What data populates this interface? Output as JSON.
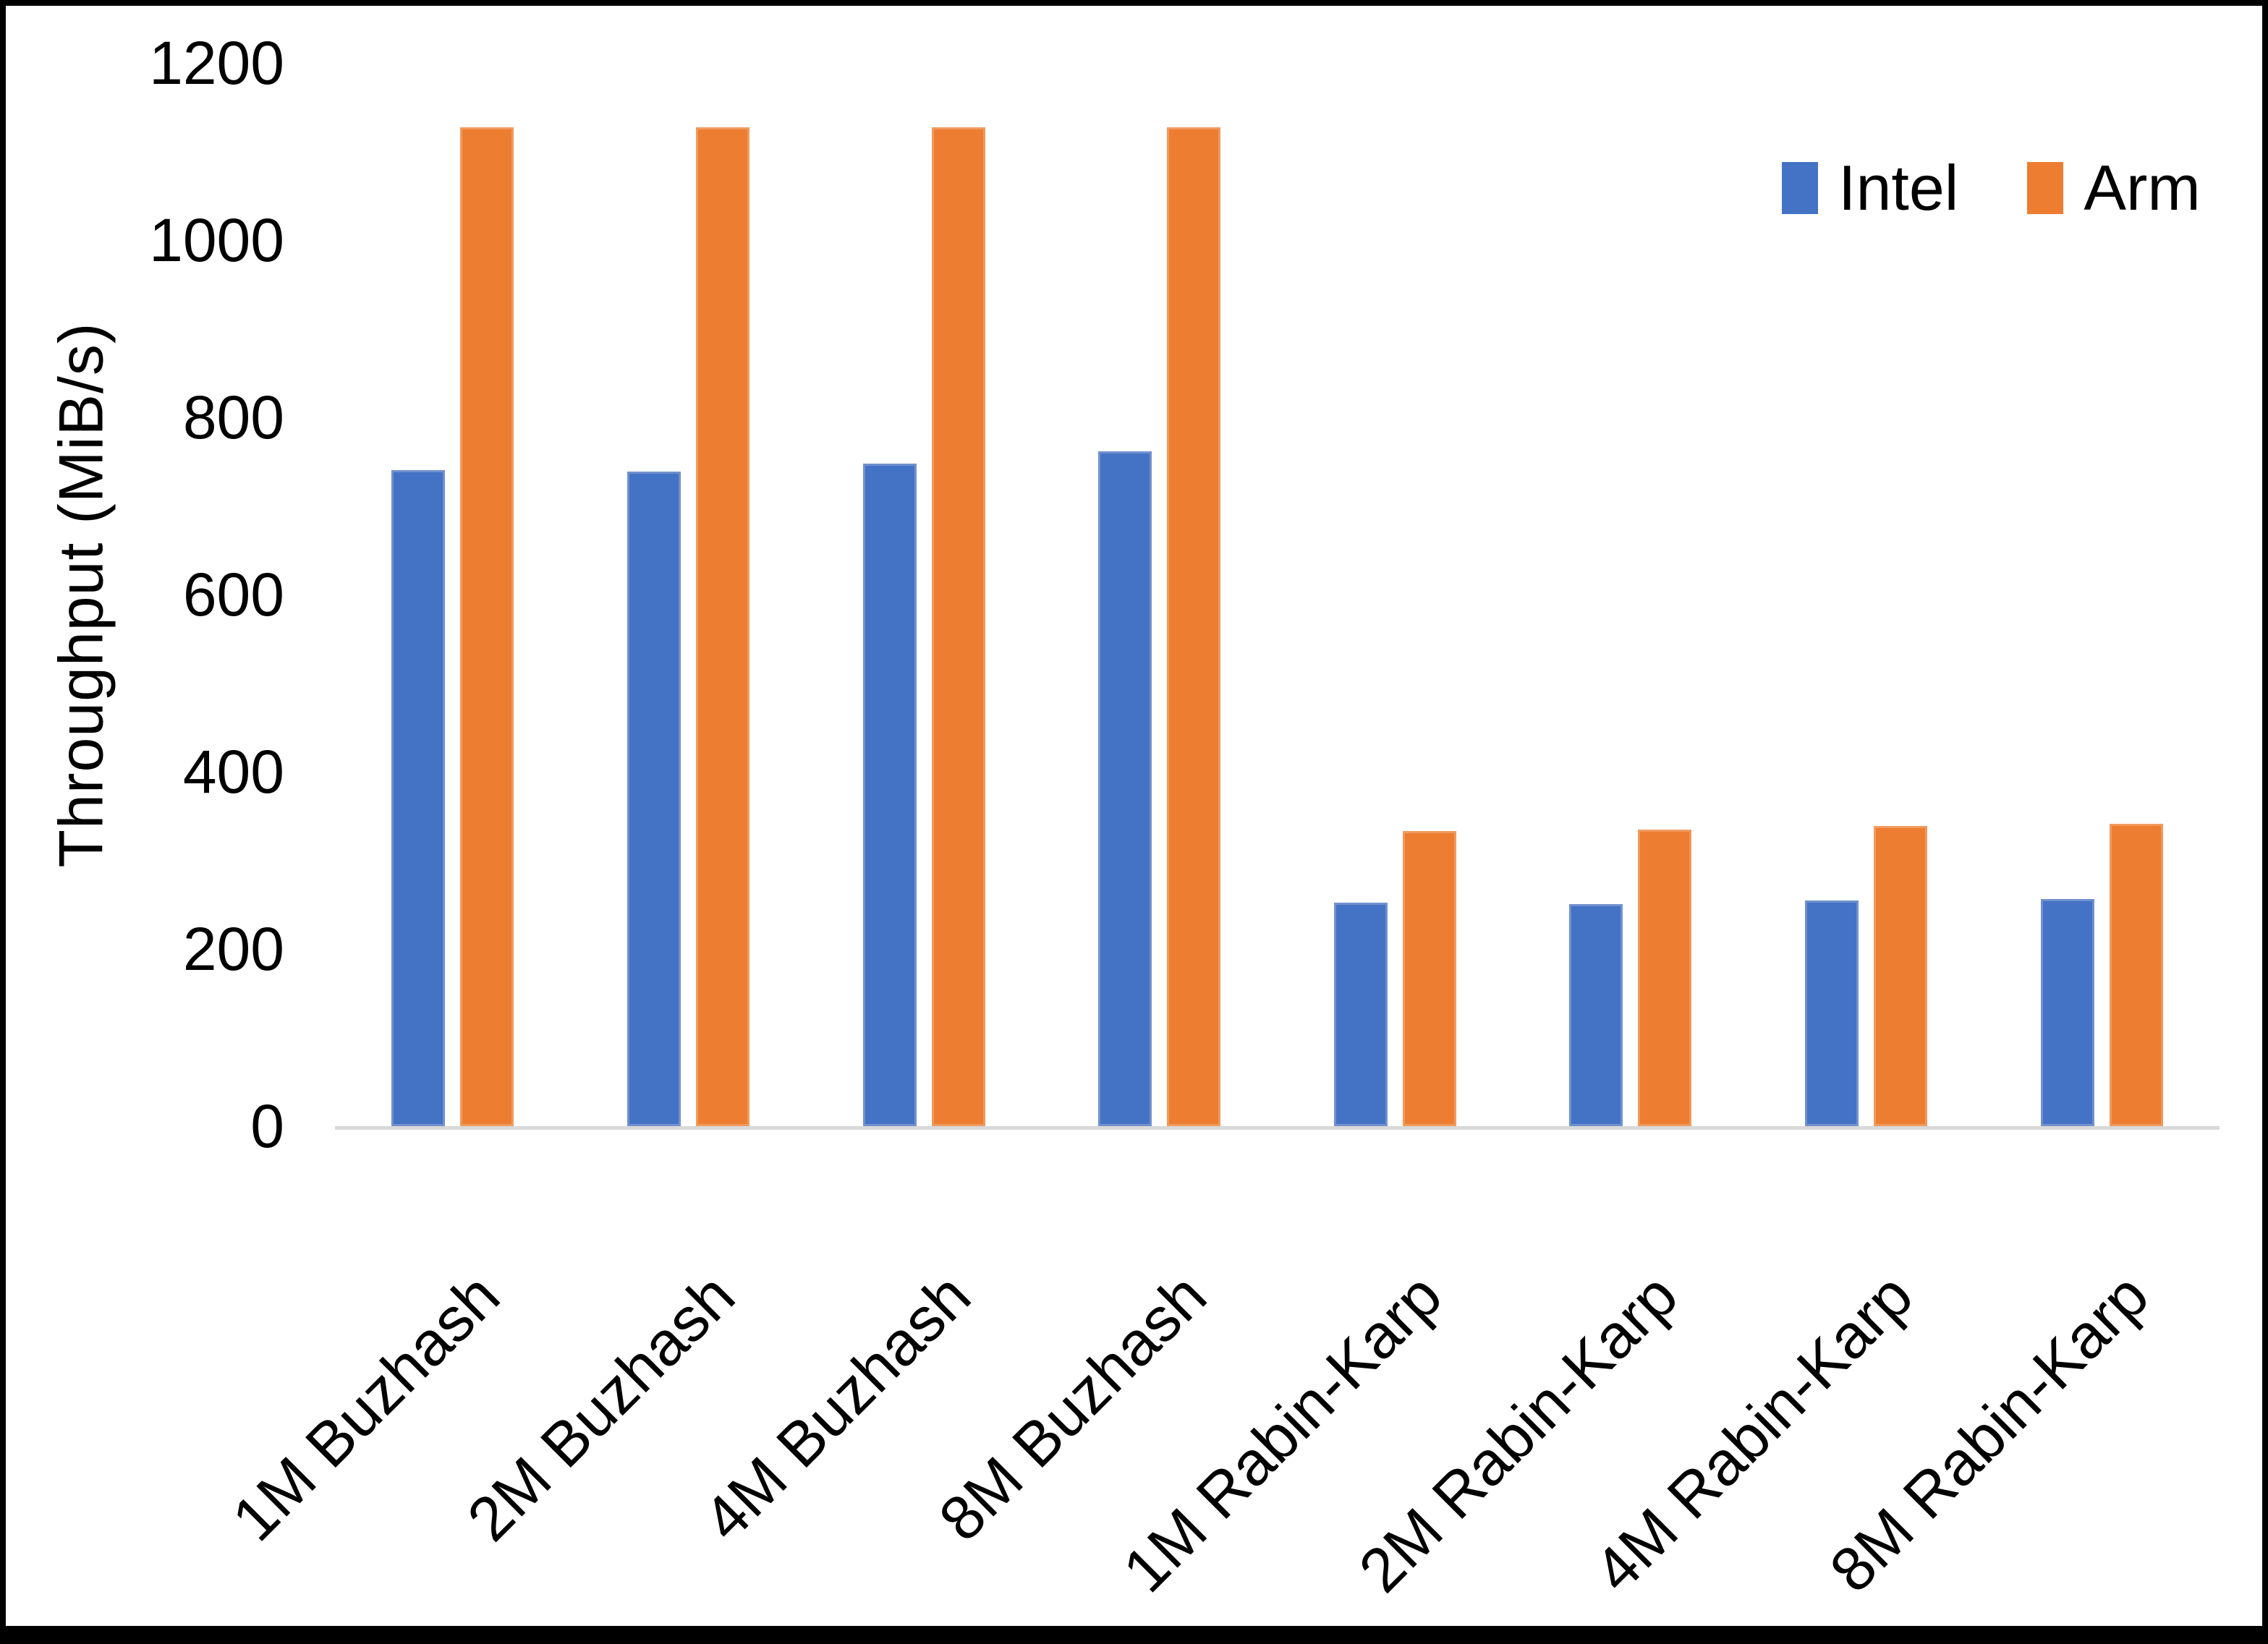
{
  "chart_data": {
    "type": "bar",
    "title": "",
    "xlabel": "",
    "ylabel": "Throughput (MiB/s)",
    "ylim": [
      0,
      1200
    ],
    "yticks": [
      0,
      200,
      400,
      600,
      800,
      1000,
      1200
    ],
    "grid": false,
    "legend_position": "top-right",
    "categories": [
      "1M Buzhash",
      "2M Buzhash",
      "4M Buzhash",
      "8M Buzhash",
      "1M Rabin-Karp",
      "2M Rabin-Karp",
      "4M Rabin-Karp",
      "8M Rabin-Karp"
    ],
    "series": [
      {
        "name": "Intel",
        "color": "#4472C4",
        "edge_color": "#7191CE",
        "values": [
          740,
          739,
          748,
          762,
          252,
          251,
          255,
          256
        ]
      },
      {
        "name": "Arm",
        "color": "#ED7D31",
        "edge_color": "#F09A5E",
        "values": [
          1127,
          1127,
          1127,
          1127,
          333,
          335,
          339,
          341
        ]
      }
    ]
  },
  "colors": {
    "background": "#FFFFFF",
    "frame": "#000000",
    "axis_line": "#D9D9D9",
    "text": "#000000"
  }
}
